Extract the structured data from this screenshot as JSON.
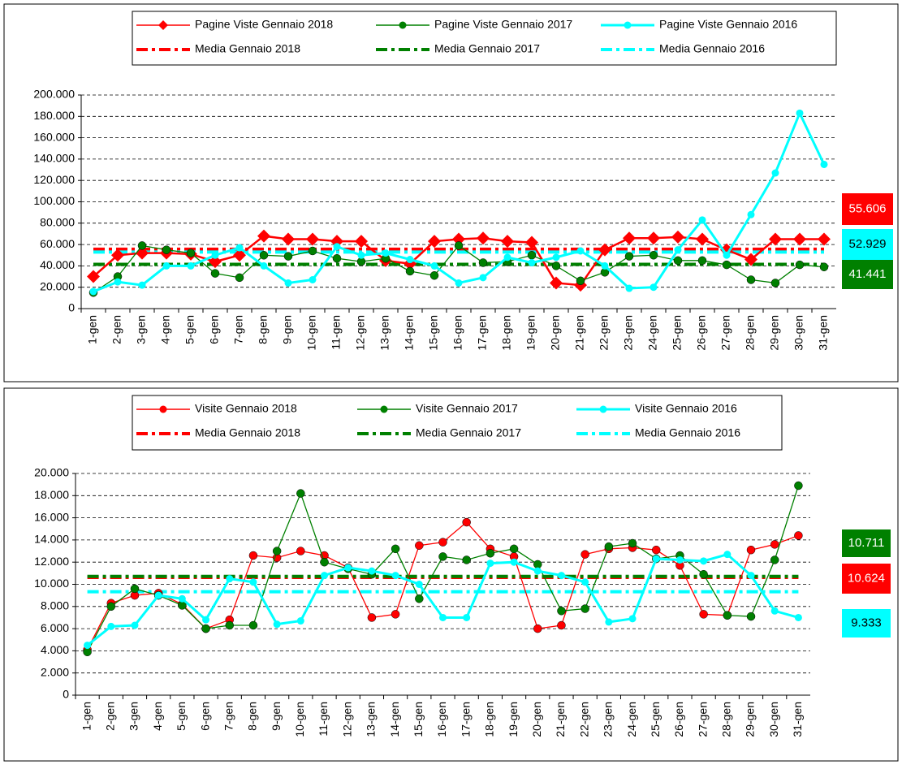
{
  "chart_data": [
    {
      "type": "line",
      "grid": true,
      "ylim": [
        0,
        200000
      ],
      "yticks": [
        0,
        {
          "value": 20000,
          "label": "20.000"
        },
        {
          "value": 40000,
          "label": "40.000"
        },
        {
          "value": 60000,
          "label": "60.000"
        },
        {
          "value": 80000,
          "label": "80.000"
        },
        {
          "value": 100000,
          "label": "100.000"
        },
        {
          "value": 120000,
          "label": "120.000"
        },
        {
          "value": 140000,
          "label": "140.000"
        },
        {
          "value": 160000,
          "label": "160.000"
        },
        {
          "value": 180000,
          "label": "180.000"
        },
        {
          "value": 200000,
          "label": "200.000"
        }
      ],
      "categories": [
        "1-gen",
        "2-gen",
        "3-gen",
        "4-gen",
        "5-gen",
        "6-gen",
        "7-gen",
        "8-gen",
        "9-gen",
        "10-gen",
        "11-gen",
        "12-gen",
        "13-gen",
        "14-gen",
        "15-gen",
        "16-gen",
        "17-gen",
        "18-gen",
        "19-gen",
        "20-gen",
        "21-gen",
        "22-gen",
        "23-gen",
        "24-gen",
        "25-gen",
        "26-gen",
        "27-gen",
        "28-gen",
        "29-gen",
        "30-gen",
        "31-gen"
      ],
      "series": [
        {
          "name": "Pagine Viste Gennaio 2018",
          "color": "#ff0000",
          "marker": "diamond",
          "values": [
            30000,
            50000,
            52000,
            52000,
            51000,
            44000,
            50000,
            68000,
            65000,
            65000,
            63000,
            63000,
            45000,
            42000,
            63000,
            65000,
            66000,
            63000,
            62000,
            24000,
            22000,
            55000,
            66000,
            66000,
            67000,
            65000,
            55000,
            46000,
            65000,
            65000,
            65000
          ]
        },
        {
          "name": "Pagine Viste Gennaio 2017",
          "color": "#008000",
          "marker": "circle",
          "values": [
            15000,
            30000,
            59000,
            55000,
            52000,
            33000,
            29000,
            50000,
            49000,
            54000,
            47000,
            44000,
            47000,
            35000,
            31000,
            59000,
            43000,
            44000,
            50000,
            40000,
            26000,
            34000,
            49000,
            50000,
            45000,
            45000,
            41000,
            27000,
            24000,
            41000,
            39000
          ]
        },
        {
          "name": "Pagine Viste Gennaio 2016",
          "color": "#00ffff",
          "marker": "circle",
          "values": [
            16000,
            25000,
            22000,
            40000,
            40000,
            50000,
            57000,
            40000,
            24000,
            27000,
            58000,
            50000,
            52000,
            46000,
            40000,
            24000,
            29000,
            48000,
            43000,
            48000,
            54000,
            40000,
            19000,
            20000,
            55000,
            83000,
            50000,
            88000,
            127000,
            183000,
            135000
          ]
        }
      ],
      "means": [
        {
          "name": "Media Gennaio 2018",
          "color": "#ff0000",
          "value": 55606,
          "value_label": "55.606"
        },
        {
          "name": "Media Gennaio 2017",
          "color": "#008000",
          "value": 41441,
          "value_label": "41.441"
        },
        {
          "name": "Media Gennaio 2016",
          "color": "#00ffff",
          "value": 52929,
          "value_label": "52.929"
        }
      ]
    },
    {
      "type": "line",
      "grid": true,
      "ylim": [
        0,
        20000
      ],
      "yticks": [
        0,
        {
          "value": 2000,
          "label": "2.000"
        },
        {
          "value": 4000,
          "label": "4.000"
        },
        {
          "value": 6000,
          "label": "6.000"
        },
        {
          "value": 8000,
          "label": "8.000"
        },
        {
          "value": 10000,
          "label": "10.000"
        },
        {
          "value": 12000,
          "label": "12.000"
        },
        {
          "value": 14000,
          "label": "14.000"
        },
        {
          "value": 16000,
          "label": "16.000"
        },
        {
          "value": 18000,
          "label": "18.000"
        },
        {
          "value": 20000,
          "label": "20.000"
        }
      ],
      "categories": [
        "1-gen",
        "2-gen",
        "3-gen",
        "4-gen",
        "5-gen",
        "6-gen",
        "7-gen",
        "8-gen",
        "9-gen",
        "10-gen",
        "11-gen",
        "12-gen",
        "13-gen",
        "14-gen",
        "15-gen",
        "16-gen",
        "17-gen",
        "18-gen",
        "19-gen",
        "20-gen",
        "21-gen",
        "22-gen",
        "23-gen",
        "24-gen",
        "25-gen",
        "26-gen",
        "27-gen",
        "28-gen",
        "29-gen",
        "30-gen",
        "31-gen"
      ],
      "series": [
        {
          "name": "Visite Gennaio 2018",
          "color": "#ff0000",
          "marker": "circle",
          "values": [
            4100,
            8300,
            9000,
            9200,
            8200,
            6000,
            6800,
            12600,
            12400,
            13000,
            12600,
            11500,
            7000,
            7300,
            13500,
            13800,
            15600,
            13200,
            12500,
            6000,
            6300,
            12700,
            13200,
            13300,
            13100,
            11700,
            7300,
            7200,
            13100,
            13600,
            14400
          ]
        },
        {
          "name": "Visite Gennaio 2017",
          "color": "#008000",
          "marker": "circle",
          "values": [
            3900,
            8000,
            9600,
            9000,
            8100,
            6000,
            6300,
            6300,
            13000,
            18200,
            12000,
            11400,
            10900,
            13200,
            8700,
            12500,
            12200,
            12800,
            13200,
            11800,
            7600,
            7800,
            13400,
            13700,
            12300,
            12600,
            10900,
            7200,
            7100,
            12200,
            18900
          ]
        },
        {
          "name": "Visite Gennaio 2016",
          "color": "#00ffff",
          "marker": "circle",
          "values": [
            4500,
            6200,
            6300,
            9000,
            8700,
            6800,
            10500,
            10200,
            6400,
            6700,
            10800,
            11500,
            11200,
            10800,
            10000,
            7000,
            7000,
            11900,
            12000,
            11200,
            10800,
            10200,
            6600,
            6900,
            12300,
            12200,
            12100,
            12700,
            10800,
            7600,
            7000
          ]
        }
      ],
      "means": [
        {
          "name": "Media Gennaio 2018",
          "color": "#ff0000",
          "value": 10624,
          "value_label": "10.624"
        },
        {
          "name": "Media Gennaio 2017",
          "color": "#008000",
          "value": 10711,
          "value_label": "10.711"
        },
        {
          "name": "Media Gennaio 2016",
          "color": "#00ffff",
          "value": 9333,
          "value_label": "9.333"
        }
      ]
    }
  ]
}
